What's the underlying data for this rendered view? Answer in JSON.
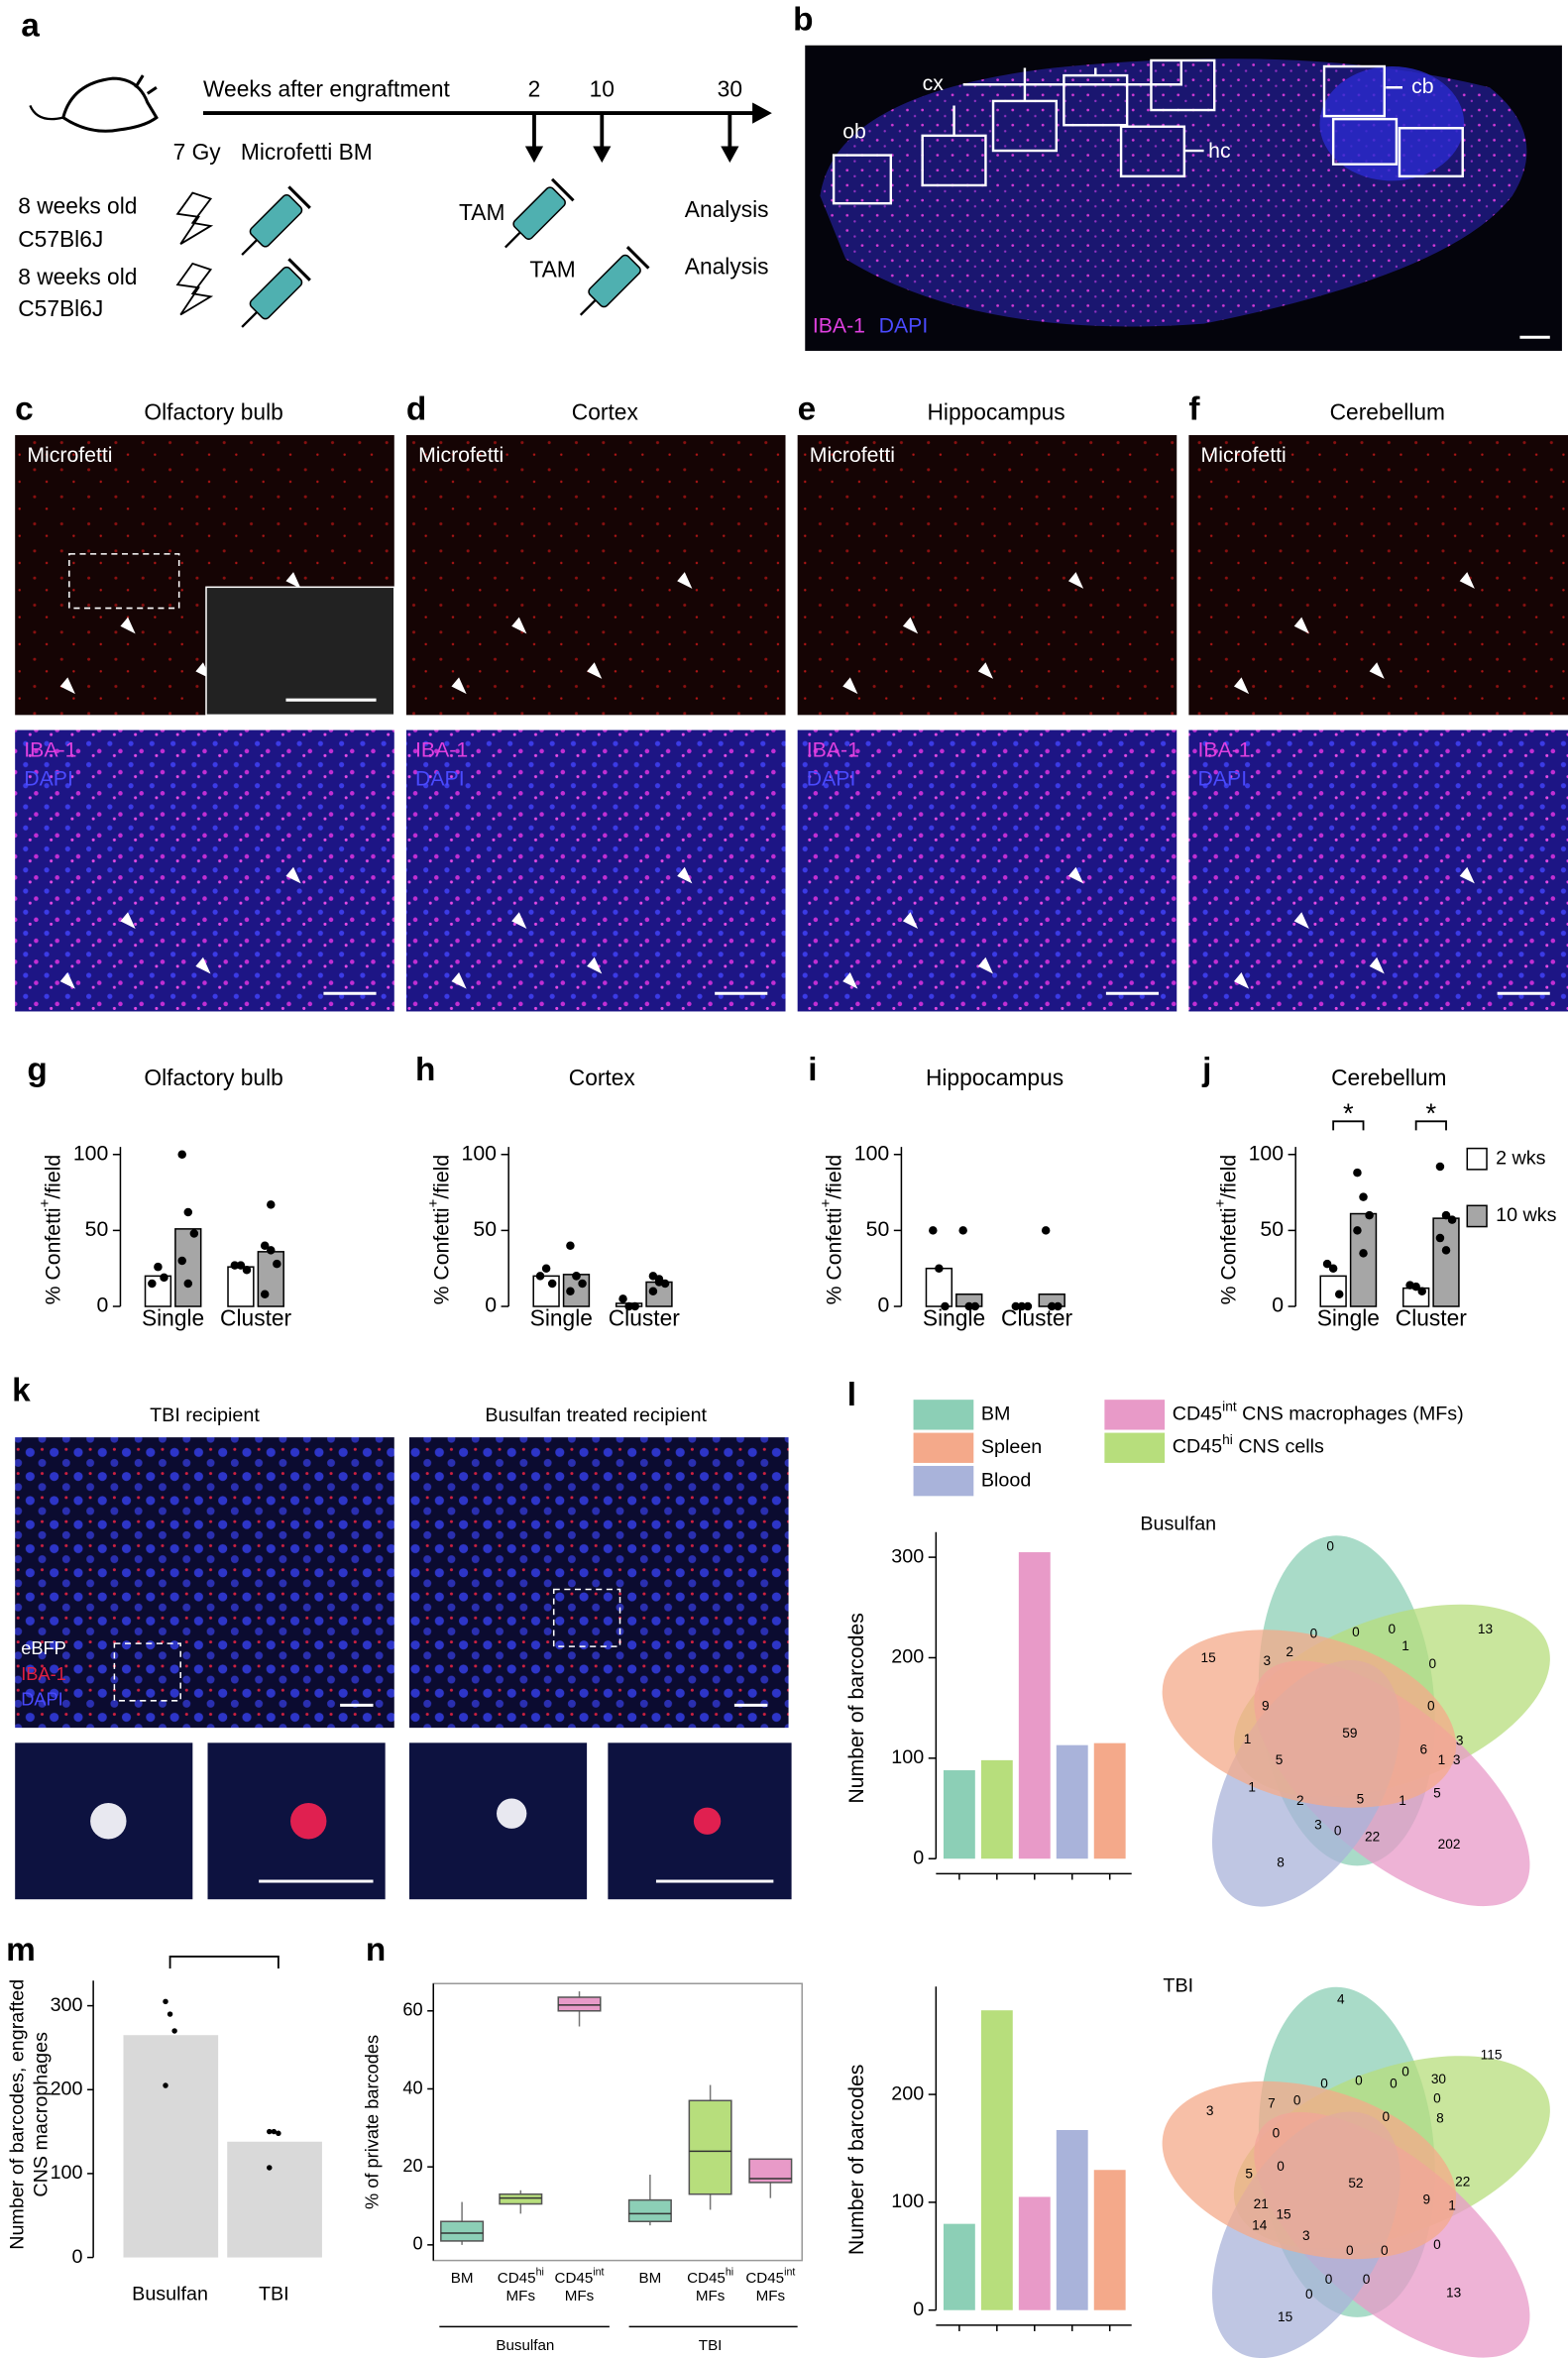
{
  "panels": {
    "a": {
      "letter": "a",
      "timeline": "Weeks after engraftment",
      "weeks": [
        2,
        10,
        30
      ],
      "dose": "7 Gy",
      "graft": "Microfetti BM",
      "mice": [
        [
          "8 weeks old",
          "C57Bl6J"
        ],
        [
          "8 weeks old",
          "C57Bl6J"
        ]
      ],
      "tam": [
        "TAM",
        "TAM"
      ],
      "analysis": [
        "Analysis",
        "Analysis"
      ]
    },
    "b": {
      "letter": "b",
      "regions": [
        "ob",
        "cx",
        "hc",
        "cb"
      ],
      "stain": [
        "IBA-1",
        "DAPI"
      ]
    },
    "micro": [
      {
        "letter": "c",
        "title": "Olfactory bulb"
      },
      {
        "letter": "d",
        "title": "Cortex"
      },
      {
        "letter": "e",
        "title": "Hippocampus"
      },
      {
        "letter": "f",
        "title": "Cerebellum"
      }
    ],
    "micro_labels": {
      "top": "Microfetti",
      "bottom": [
        "IBA-1",
        "DAPI"
      ]
    },
    "k": {
      "letter": "k",
      "titles": [
        "TBI recipient",
        "Busulfan treated recipient"
      ],
      "stain": [
        "eBFP",
        "IBA-1",
        "DAPI"
      ]
    },
    "l": {
      "letter": "l",
      "legend": [
        {
          "name": "BM",
          "color": "#8ccfb6"
        },
        {
          "name": "Spleen",
          "color": "#f4a98a"
        },
        {
          "name": "Blood",
          "color": "#a9b3da"
        },
        {
          "name": "CD45int CNS macrophages (MFs)",
          "color": "#e89ac8"
        },
        {
          "name": "CD45hi CNS cells",
          "color": "#b7de7c"
        }
      ]
    },
    "m": {
      "letter": "m"
    },
    "n": {
      "letter": "n"
    },
    "venn": [
      {
        "title": "Busulfan",
        "counts": [
          0,
          13,
          15,
          202,
          8,
          59,
          3,
          2,
          0,
          0,
          0,
          1,
          0,
          9,
          0,
          1,
          5,
          1,
          6,
          3,
          1,
          5,
          1,
          5,
          2,
          3,
          0,
          22,
          3
        ]
      },
      {
        "title": "TBI",
        "counts": [
          4,
          115,
          3,
          52,
          13,
          15,
          7,
          0,
          0,
          0,
          0,
          0,
          30,
          0,
          0,
          0,
          8,
          5,
          0,
          9,
          22,
          1,
          21,
          15,
          14,
          3,
          0,
          0,
          0,
          0,
          0,
          0
        ]
      }
    ]
  },
  "chart_data": [
    {
      "type": "dotbar",
      "letter": "g",
      "title": "Olfactory bulb",
      "ylabel": "% Confetti+/field",
      "categories": [
        "Single",
        "Cluster"
      ],
      "ylim": [
        0,
        105
      ],
      "yticks": [
        0,
        50,
        100
      ],
      "series": [
        {
          "color": "#ffffff",
          "values": [
            20,
            26
          ],
          "points": [
            [
              15,
              26,
              19
            ],
            [
              27,
              27,
              24
            ]
          ]
        },
        {
          "color": "#a6a6a6",
          "values": [
            51,
            36
          ],
          "points": [
            [
              100,
              62,
              48,
              30,
              15
            ],
            [
              40,
              37,
              28,
              8,
              67
            ]
          ]
        }
      ]
    },
    {
      "type": "dotbar",
      "letter": "h",
      "title": "Cortex",
      "ylabel": "% Confetti+/field",
      "categories": [
        "Single",
        "Cluster"
      ],
      "ylim": [
        0,
        105
      ],
      "yticks": [
        0,
        50,
        100
      ],
      "series": [
        {
          "color": "#ffffff",
          "values": [
            20,
            2
          ],
          "points": [
            [
              20,
              25,
              15
            ],
            [
              5,
              0,
              0
            ]
          ]
        },
        {
          "color": "#a6a6a6",
          "values": [
            21,
            16
          ],
          "points": [
            [
              40,
              20,
              15,
              10,
              20
            ],
            [
              20,
              16,
              15,
              10,
              18
            ]
          ]
        }
      ]
    },
    {
      "type": "dotbar",
      "letter": "i",
      "title": "Hippocampus",
      "ylabel": "% Confetti+/field",
      "categories": [
        "Single",
        "Cluster"
      ],
      "ylim": [
        0,
        105
      ],
      "yticks": [
        0,
        50,
        100
      ],
      "series": [
        {
          "color": "#ffffff",
          "values": [
            25,
            0
          ],
          "points": [
            [
              50,
              25,
              0
            ],
            [
              0,
              0,
              0
            ]
          ]
        },
        {
          "color": "#a6a6a6",
          "values": [
            8,
            8
          ],
          "points": [
            [
              50,
              0,
              0
            ],
            [
              50,
              0,
              0
            ]
          ]
        }
      ]
    },
    {
      "type": "dotbar",
      "letter": "j",
      "title": "Cerebellum",
      "ylabel": "% Confetti+/field",
      "categories": [
        "Single",
        "Cluster"
      ],
      "ylim": [
        0,
        105
      ],
      "yticks": [
        0,
        50,
        100
      ],
      "annotations": [
        "*",
        "*"
      ],
      "series": [
        {
          "name": "2 wks",
          "color": "#ffffff",
          "values": [
            20,
            12
          ],
          "points": [
            [
              28,
              25,
              8
            ],
            [
              14,
              13,
              10
            ]
          ]
        },
        {
          "name": "10 wks",
          "color": "#a6a6a6",
          "values": [
            61,
            58
          ],
          "points": [
            [
              88,
              72,
              60,
              50,
              35
            ],
            [
              92,
              60,
              57,
              45,
              37
            ]
          ]
        }
      ]
    },
    {
      "type": "bar",
      "ylabel": "Number of barcodes",
      "categories": [
        null,
        null,
        null,
        null,
        null
      ],
      "values": [
        88,
        98,
        305,
        113,
        115
      ],
      "colors": [
        "#8ccfb6",
        "#b7de7c",
        "#e89ac8",
        "#a9b3da",
        "#f4a98a"
      ],
      "ylim": [
        0,
        325
      ],
      "yticks": [
        0,
        100,
        200,
        300
      ]
    },
    {
      "type": "bar",
      "ylabel": "Number of barcodes",
      "categories": [
        null,
        null,
        null,
        null,
        null
      ],
      "values": [
        80,
        278,
        105,
        167,
        130
      ],
      "colors": [
        "#8ccfb6",
        "#b7de7c",
        "#e89ac8",
        "#a9b3da",
        "#f4a98a"
      ],
      "ylim": [
        0,
        300
      ],
      "yticks": [
        0,
        100,
        200
      ]
    },
    {
      "type": "dotbar2",
      "ylabel": [
        "Number of barcodes, engrafted",
        "CNS macrophages"
      ],
      "categories": [
        "Busulfan",
        "TBI"
      ],
      "values": [
        265,
        138
      ],
      "points": [
        [
          305,
          290,
          270,
          205
        ],
        [
          150,
          150,
          148,
          107
        ]
      ],
      "color": "#d9d9d9",
      "ylim": [
        0,
        330
      ],
      "yticks": [
        0,
        100,
        200,
        300
      ]
    },
    {
      "type": "box",
      "ylabel": "% of private barcodes",
      "categories": [
        [
          "BM"
        ],
        [
          "CD45hi",
          "MFs"
        ],
        [
          "CD45int",
          "MFs"
        ],
        [
          "BM"
        ],
        [
          "CD45hi",
          "MFs"
        ],
        [
          "CD45int",
          "MFs"
        ]
      ],
      "groups": [
        "Busulfan",
        "TBI"
      ],
      "colors": [
        "#8ccfb6",
        "#b7de7c",
        "#e89ac8",
        "#8ccfb6",
        "#b7de7c",
        "#e89ac8"
      ],
      "boxes": [
        {
          "min": 0,
          "q1": 1,
          "median": 3,
          "q3": 6,
          "max": 11
        },
        {
          "min": 8,
          "q1": 10.5,
          "median": 12,
          "q3": 13,
          "max": 14
        },
        {
          "min": 56,
          "q1": 60,
          "median": 61.5,
          "q3": 63.5,
          "max": 65
        },
        {
          "min": 5,
          "q1": 6,
          "median": 8,
          "q3": 11.5,
          "max": 18
        },
        {
          "min": 9,
          "q1": 13,
          "median": 24,
          "q3": 37,
          "max": 41
        },
        {
          "min": 12,
          "q1": 16,
          "median": 17,
          "q3": 22,
          "max": 22
        }
      ],
      "ylim": [
        -4,
        67
      ],
      "yticks": [
        0,
        20,
        40,
        60
      ]
    }
  ]
}
